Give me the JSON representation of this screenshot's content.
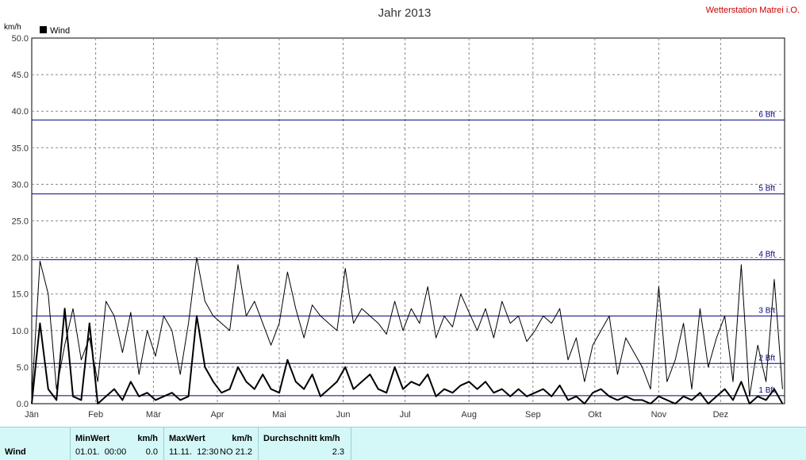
{
  "header": {
    "station": "Wetterstation Matrei i.O."
  },
  "chart_data": {
    "type": "line",
    "title": "Jahr 2013",
    "ylabel": "km/h",
    "ylim": [
      0,
      50
    ],
    "yticks": [
      "0.0",
      "5.0",
      "10.0",
      "15.0",
      "20.0",
      "25.0",
      "30.0",
      "35.0",
      "40.0",
      "45.0",
      "50.0"
    ],
    "xlim": [
      0,
      365
    ],
    "months": [
      {
        "label": "Jän",
        "day": 0
      },
      {
        "label": "Feb",
        "day": 31
      },
      {
        "label": "Mär",
        "day": 59
      },
      {
        "label": "Apr",
        "day": 90
      },
      {
        "label": "Mai",
        "day": 120
      },
      {
        "label": "Jun",
        "day": 151
      },
      {
        "label": "Jul",
        "day": 181
      },
      {
        "label": "Aug",
        "day": 212
      },
      {
        "label": "Sep",
        "day": 243
      },
      {
        "label": "Okt",
        "day": 273
      },
      {
        "label": "Nov",
        "day": 304
      },
      {
        "label": "Dez",
        "day": 334
      }
    ],
    "legend": [
      "Wind"
    ],
    "beaufort": [
      {
        "label": "1 Bft",
        "value": 1.1
      },
      {
        "label": "2 Bft",
        "value": 5.5
      },
      {
        "label": "3 Bft",
        "value": 12.0
      },
      {
        "label": "4 Bft",
        "value": 19.7
      },
      {
        "label": "5 Bft",
        "value": 28.7
      },
      {
        "label": "6 Bft",
        "value": 38.8
      }
    ],
    "series": [
      {
        "name": "Wind",
        "style": "thin",
        "x": [
          0,
          4,
          8,
          12,
          16,
          20,
          24,
          28,
          32,
          36,
          40,
          44,
          48,
          52,
          56,
          60,
          64,
          68,
          72,
          76,
          80,
          84,
          88,
          92,
          96,
          100,
          104,
          108,
          112,
          116,
          120,
          124,
          128,
          132,
          136,
          140,
          144,
          148,
          152,
          156,
          160,
          164,
          168,
          172,
          176,
          180,
          184,
          188,
          192,
          196,
          200,
          204,
          208,
          212,
          216,
          220,
          224,
          228,
          232,
          236,
          240,
          244,
          248,
          252,
          256,
          260,
          264,
          268,
          272,
          276,
          280,
          284,
          288,
          292,
          296,
          300,
          304,
          308,
          312,
          316,
          320,
          324,
          328,
          332,
          336,
          340,
          344,
          348,
          352,
          356,
          360,
          364
        ],
        "y": [
          1.0,
          19.5,
          15.0,
          2.0,
          8.0,
          13.0,
          6.0,
          9.0,
          3.0,
          14.0,
          12.0,
          7.0,
          12.5,
          4.0,
          10.0,
          6.5,
          12.0,
          10.0,
          4.0,
          11.0,
          20.0,
          14.0,
          12.0,
          11.0,
          10.0,
          19.0,
          12.0,
          14.0,
          11.0,
          8.0,
          11.0,
          18.0,
          13.0,
          9.0,
          13.5,
          12.0,
          11.0,
          10.0,
          18.5,
          11.0,
          13.0,
          12.0,
          11.0,
          9.5,
          14.0,
          10.0,
          13.0,
          11.0,
          16.0,
          9.0,
          12.0,
          10.5,
          15.0,
          12.5,
          10.0,
          13.0,
          9.0,
          14.0,
          11.0,
          12.0,
          8.5,
          10.0,
          12.0,
          11.0,
          13.0,
          6.0,
          9.0,
          3.0,
          8.0,
          10.0,
          12.0,
          4.0,
          9.0,
          7.0,
          5.0,
          2.0,
          16.0,
          3.0,
          6.0,
          11.0,
          2.0,
          13.0,
          5.0,
          9.0,
          12.0,
          3.0,
          19.0,
          1.0,
          8.0,
          3.0,
          17.0,
          2.0
        ]
      },
      {
        "name": "Wind",
        "style": "thick",
        "x": [
          0,
          4,
          8,
          12,
          16,
          20,
          24,
          28,
          32,
          36,
          40,
          44,
          48,
          52,
          56,
          60,
          64,
          68,
          72,
          76,
          80,
          84,
          88,
          92,
          96,
          100,
          104,
          108,
          112,
          116,
          120,
          124,
          128,
          132,
          136,
          140,
          144,
          148,
          152,
          156,
          160,
          164,
          168,
          172,
          176,
          180,
          184,
          188,
          192,
          196,
          200,
          204,
          208,
          212,
          216,
          220,
          224,
          228,
          232,
          236,
          240,
          244,
          248,
          252,
          256,
          260,
          264,
          268,
          272,
          276,
          280,
          284,
          288,
          292,
          296,
          300,
          304,
          308,
          312,
          316,
          320,
          324,
          328,
          332,
          336,
          340,
          344,
          348,
          352,
          356,
          360,
          364
        ],
        "y": [
          0.0,
          11.0,
          2.0,
          0.5,
          13.0,
          1.0,
          0.5,
          11.0,
          0.0,
          1.0,
          2.0,
          0.5,
          3.0,
          1.0,
          1.5,
          0.5,
          1.0,
          1.5,
          0.5,
          1.0,
          12.0,
          5.0,
          3.0,
          1.5,
          2.0,
          5.0,
          3.0,
          2.0,
          4.0,
          2.0,
          1.5,
          6.0,
          3.0,
          2.0,
          4.0,
          1.0,
          2.0,
          3.0,
          5.0,
          2.0,
          3.0,
          4.0,
          2.0,
          1.5,
          5.0,
          2.0,
          3.0,
          2.5,
          4.0,
          1.0,
          2.0,
          1.5,
          2.5,
          3.0,
          2.0,
          3.0,
          1.5,
          2.0,
          1.0,
          2.0,
          1.0,
          1.5,
          2.0,
          1.0,
          2.5,
          0.5,
          1.0,
          0.0,
          1.5,
          2.0,
          1.0,
          0.5,
          1.0,
          0.5,
          0.5,
          0.0,
          1.0,
          0.5,
          0.0,
          1.0,
          0.5,
          1.5,
          0.0,
          1.0,
          2.0,
          0.5,
          3.0,
          0.0,
          1.0,
          0.5,
          2.0,
          0.0
        ]
      }
    ]
  },
  "stats": {
    "row_label": "Wind",
    "min": {
      "label": "MinWert",
      "unit": "km/h",
      "datetime": "01.01.  00:00",
      "value": "0.0"
    },
    "max": {
      "label": "MaxWert",
      "unit": "km/h",
      "datetime": "11.11.  12:30",
      "dir_value": "NO 21.2"
    },
    "avg": {
      "label": "Durchschnitt km/h",
      "value": "2.3"
    }
  }
}
